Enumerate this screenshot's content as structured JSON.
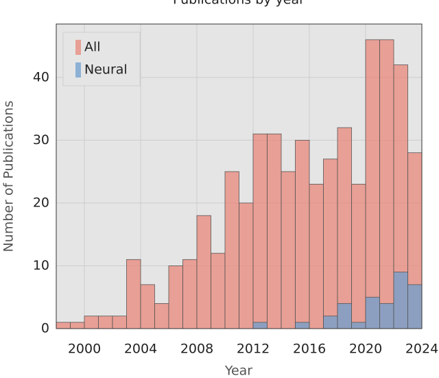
{
  "chart_data": {
    "type": "histogram",
    "title": "Publications by year",
    "x_label": "Year",
    "y_label": "Number of Publications",
    "bins": [
      1998,
      1999,
      2000,
      2001,
      2002,
      2003,
      2004,
      2005,
      2006,
      2007,
      2008,
      2009,
      2010,
      2011,
      2012,
      2013,
      2014,
      2015,
      2016,
      2017,
      2018,
      2019,
      2020,
      2021,
      2022,
      2023,
      2024
    ],
    "series": [
      {
        "name": "All",
        "color": "#e8877a",
        "values": [
          1,
          1,
          2,
          2,
          2,
          11,
          7,
          4,
          10,
          11,
          18,
          12,
          25,
          20,
          31,
          31,
          25,
          30,
          23,
          27,
          32,
          23,
          46,
          46,
          42,
          28
        ]
      },
      {
        "name": "Neural",
        "color": "#6f9fcf",
        "values": [
          0,
          0,
          0,
          0,
          0,
          0,
          0,
          0,
          0,
          0,
          0,
          0,
          0,
          0,
          1,
          0,
          0,
          1,
          0,
          2,
          4,
          1,
          5,
          4,
          9,
          7
        ]
      }
    ],
    "xlim": [
      1998,
      2024
    ],
    "xticks": [
      2000,
      2004,
      2008,
      2012,
      2016,
      2020,
      2024
    ],
    "ylim": [
      0,
      48.5
    ],
    "yticks": [
      0,
      10,
      20,
      30,
      40
    ],
    "grid": true,
    "legend": "upper left"
  }
}
